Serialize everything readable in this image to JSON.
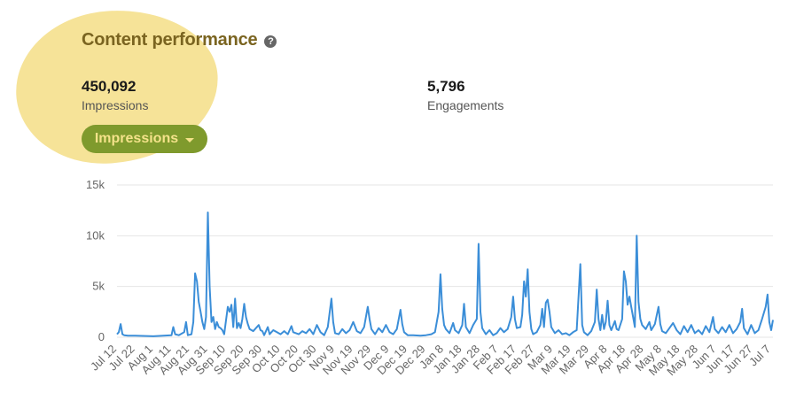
{
  "header": {
    "title": "Content performance",
    "help_icon": "help-icon",
    "help_glyph": "?"
  },
  "metrics": {
    "impressions": {
      "value": "450,092",
      "label": "Impressions"
    },
    "engagements": {
      "value": "5,796",
      "label": "Engagements"
    }
  },
  "dropdown": {
    "label": "Impressions",
    "icon": "caret-down-icon"
  },
  "colors": {
    "line": "#3b8ed8",
    "dropdown_bg": "#7f9a2d",
    "dropdown_text": "#f4e28a",
    "highlight": "#f6e398",
    "title": "#7a6420"
  },
  "chart_data": {
    "type": "line",
    "title": "",
    "xlabel": "",
    "ylabel": "",
    "ylim": [
      0,
      15000
    ],
    "y_ticks": [
      0,
      5000,
      10000,
      15000
    ],
    "y_tick_labels": [
      "0",
      "5k",
      "10k",
      "15k"
    ],
    "grid": true,
    "x_tick_labels": [
      "Jul 12",
      "Jul 22",
      "Aug 1",
      "Aug 11",
      "Aug 21",
      "Aug 31",
      "Sep 10",
      "Sep 20",
      "Sep 30",
      "Oct 10",
      "Oct 20",
      "Oct 30",
      "Nov 9",
      "Nov 19",
      "Nov 29",
      "Dec 9",
      "Dec 19",
      "Dec 29",
      "Jan 8",
      "Jan 18",
      "Jan 28",
      "Feb 7",
      "Feb 17",
      "Feb 27",
      "Mar 9",
      "Mar 19",
      "Mar 29",
      "Apr 8",
      "Apr 18",
      "Apr 28",
      "May 8",
      "May 18",
      "May 28",
      "Jun 7",
      "Jun 17",
      "Jun 27",
      "Jul 7"
    ],
    "series": [
      {
        "name": "",
        "points": [
          [
            "Jul 12",
            300
          ],
          [
            "Jul 13",
            500
          ],
          [
            "Jul 14",
            1300
          ],
          [
            "Jul 15",
            300
          ],
          [
            "Jul 16",
            200
          ],
          [
            "Jul 18",
            150
          ],
          [
            "Jul 22",
            150
          ],
          [
            "Aug 1",
            100
          ],
          [
            "Aug 11",
            200
          ],
          [
            "Aug 12",
            1000
          ],
          [
            "Aug 13",
            300
          ],
          [
            "Aug 15",
            200
          ],
          [
            "Aug 18",
            500
          ],
          [
            "Aug 19",
            1500
          ],
          [
            "Aug 20",
            200
          ],
          [
            "Aug 22",
            300
          ],
          [
            "Aug 23",
            1500
          ],
          [
            "Aug 24",
            6300
          ],
          [
            "Aug 25",
            5500
          ],
          [
            "Aug 26",
            3500
          ],
          [
            "Aug 27",
            2500
          ],
          [
            "Aug 28",
            1500
          ],
          [
            "Aug 29",
            800
          ],
          [
            "Aug 30",
            2000
          ],
          [
            "Aug 31",
            12300
          ],
          [
            "Sep 1",
            5000
          ],
          [
            "Sep 2",
            1500
          ],
          [
            "Sep 3",
            2000
          ],
          [
            "Sep 4",
            800
          ],
          [
            "Sep 5",
            1500
          ],
          [
            "Sep 6",
            1000
          ],
          [
            "Sep 7",
            900
          ],
          [
            "Sep 8",
            700
          ],
          [
            "Sep 9",
            300
          ],
          [
            "Sep 11",
            3000
          ],
          [
            "Sep 12",
            2500
          ],
          [
            "Sep 13",
            3200
          ],
          [
            "Sep 14",
            1000
          ],
          [
            "Sep 15",
            3800
          ],
          [
            "Sep 16",
            900
          ],
          [
            "Sep 17",
            1400
          ],
          [
            "Sep 18",
            900
          ],
          [
            "Sep 19",
            1800
          ],
          [
            "Sep 20",
            3300
          ],
          [
            "Sep 21",
            2000
          ],
          [
            "Sep 22",
            1300
          ],
          [
            "Sep 23",
            800
          ],
          [
            "Sep 25",
            600
          ],
          [
            "Sep 28",
            1200
          ],
          [
            "Sep 29",
            700
          ],
          [
            "Sep 30",
            600
          ],
          [
            "Oct 1",
            200
          ],
          [
            "Oct 3",
            1000
          ],
          [
            "Oct 4",
            300
          ],
          [
            "Oct 6",
            700
          ],
          [
            "Oct 8",
            500
          ],
          [
            "Oct 10",
            300
          ],
          [
            "Oct 12",
            600
          ],
          [
            "Oct 14",
            300
          ],
          [
            "Oct 16",
            1100
          ],
          [
            "Oct 17",
            500
          ],
          [
            "Oct 20",
            300
          ],
          [
            "Oct 22",
            600
          ],
          [
            "Oct 24",
            400
          ],
          [
            "Oct 26",
            800
          ],
          [
            "Oct 28",
            300
          ],
          [
            "Oct 30",
            1200
          ],
          [
            "Nov 1",
            500
          ],
          [
            "Nov 3",
            200
          ],
          [
            "Nov 5",
            1000
          ],
          [
            "Nov 7",
            3800
          ],
          [
            "Nov 8",
            1500
          ],
          [
            "Nov 9",
            400
          ],
          [
            "Nov 11",
            300
          ],
          [
            "Nov 13",
            800
          ],
          [
            "Nov 15",
            400
          ],
          [
            "Nov 17",
            700
          ],
          [
            "Nov 19",
            1500
          ],
          [
            "Nov 21",
            600
          ],
          [
            "Nov 23",
            400
          ],
          [
            "Nov 25",
            1000
          ],
          [
            "Nov 27",
            3000
          ],
          [
            "Nov 28",
            1800
          ],
          [
            "Nov 29",
            800
          ],
          [
            "Dec 1",
            300
          ],
          [
            "Dec 3",
            900
          ],
          [
            "Dec 5",
            500
          ],
          [
            "Dec 7",
            1200
          ],
          [
            "Dec 9",
            500
          ],
          [
            "Dec 11",
            300
          ],
          [
            "Dec 13",
            800
          ],
          [
            "Dec 15",
            2700
          ],
          [
            "Dec 16",
            1300
          ],
          [
            "Dec 17",
            500
          ],
          [
            "Dec 19",
            200
          ],
          [
            "Dec 22",
            200
          ],
          [
            "Dec 26",
            150
          ],
          [
            "Dec 29",
            200
          ],
          [
            "Jan 1",
            300
          ],
          [
            "Jan 3",
            500
          ],
          [
            "Jan 5",
            2500
          ],
          [
            "Jan 6",
            6200
          ],
          [
            "Jan 7",
            2800
          ],
          [
            "Jan 8",
            1200
          ],
          [
            "Jan 9",
            800
          ],
          [
            "Jan 11",
            400
          ],
          [
            "Jan 13",
            1400
          ],
          [
            "Jan 14",
            700
          ],
          [
            "Jan 16",
            400
          ],
          [
            "Jan 18",
            1200
          ],
          [
            "Jan 19",
            3300
          ],
          [
            "Jan 20",
            1000
          ],
          [
            "Jan 22",
            400
          ],
          [
            "Jan 24",
            1200
          ],
          [
            "Jan 26",
            1800
          ],
          [
            "Jan 27",
            9200
          ],
          [
            "Jan 28",
            2500
          ],
          [
            "Jan 29",
            900
          ],
          [
            "Jan 31",
            300
          ],
          [
            "Feb 2",
            700
          ],
          [
            "Feb 4",
            200
          ],
          [
            "Feb 6",
            400
          ],
          [
            "Feb 8",
            900
          ],
          [
            "Feb 10",
            500
          ],
          [
            "Feb 12",
            800
          ],
          [
            "Feb 14",
            2000
          ],
          [
            "Feb 15",
            4000
          ],
          [
            "Feb 16",
            1800
          ],
          [
            "Feb 17",
            900
          ],
          [
            "Feb 19",
            1000
          ],
          [
            "Feb 20",
            2200
          ],
          [
            "Feb 21",
            5500
          ],
          [
            "Feb 22",
            4000
          ],
          [
            "Feb 23",
            6700
          ],
          [
            "Feb 24",
            2500
          ],
          [
            "Feb 25",
            800
          ],
          [
            "Feb 26",
            300
          ],
          [
            "Feb 28",
            500
          ],
          [
            "Mar 2",
            1200
          ],
          [
            "Mar 3",
            2800
          ],
          [
            "Mar 4",
            1000
          ],
          [
            "Mar 5",
            3400
          ],
          [
            "Mar 6",
            3700
          ],
          [
            "Mar 7",
            2500
          ],
          [
            "Mar 8",
            1000
          ],
          [
            "Mar 10",
            400
          ],
          [
            "Mar 12",
            700
          ],
          [
            "Mar 14",
            300
          ],
          [
            "Mar 16",
            400
          ],
          [
            "Mar 18",
            200
          ],
          [
            "Mar 20",
            500
          ],
          [
            "Mar 22",
            700
          ],
          [
            "Mar 24",
            7200
          ],
          [
            "Mar 25",
            1200
          ],
          [
            "Mar 26",
            500
          ],
          [
            "Mar 28",
            200
          ],
          [
            "Mar 30",
            600
          ],
          [
            "Apr 1",
            1500
          ],
          [
            "Apr 2",
            4700
          ],
          [
            "Apr 3",
            1800
          ],
          [
            "Apr 4",
            700
          ],
          [
            "Apr 5",
            2200
          ],
          [
            "Apr 6",
            800
          ],
          [
            "Apr 7",
            1500
          ],
          [
            "Apr 8",
            3600
          ],
          [
            "Apr 9",
            1200
          ],
          [
            "Apr 10",
            700
          ],
          [
            "Apr 12",
            1600
          ],
          [
            "Apr 13",
            800
          ],
          [
            "Apr 14",
            700
          ],
          [
            "Apr 16",
            1800
          ],
          [
            "Apr 17",
            6500
          ],
          [
            "Apr 18",
            5500
          ],
          [
            "Apr 19",
            3200
          ],
          [
            "Apr 20",
            4000
          ],
          [
            "Apr 21",
            3000
          ],
          [
            "Apr 22",
            2000
          ],
          [
            "Apr 23",
            1000
          ],
          [
            "Apr 24",
            10000
          ],
          [
            "Apr 25",
            3500
          ],
          [
            "Apr 26",
            1800
          ],
          [
            "Apr 27",
            1200
          ],
          [
            "Apr 29",
            800
          ],
          [
            "May 1",
            1500
          ],
          [
            "May 2",
            700
          ],
          [
            "May 4",
            1300
          ],
          [
            "May 6",
            3000
          ],
          [
            "May 7",
            1300
          ],
          [
            "May 8",
            600
          ],
          [
            "May 10",
            400
          ],
          [
            "May 12",
            900
          ],
          [
            "May 14",
            1400
          ],
          [
            "May 16",
            700
          ],
          [
            "May 18",
            300
          ],
          [
            "May 20",
            1100
          ],
          [
            "May 22",
            500
          ],
          [
            "May 24",
            1200
          ],
          [
            "May 26",
            400
          ],
          [
            "May 28",
            700
          ],
          [
            "May 30",
            300
          ],
          [
            "Jun 1",
            1100
          ],
          [
            "Jun 3",
            500
          ],
          [
            "Jun 5",
            2000
          ],
          [
            "Jun 6",
            800
          ],
          [
            "Jun 8",
            400
          ],
          [
            "Jun 10",
            1000
          ],
          [
            "Jun 12",
            500
          ],
          [
            "Jun 14",
            1200
          ],
          [
            "Jun 16",
            400
          ],
          [
            "Jun 18",
            800
          ],
          [
            "Jun 20",
            1500
          ],
          [
            "Jun 21",
            2800
          ],
          [
            "Jun 22",
            900
          ],
          [
            "Jun 24",
            300
          ],
          [
            "Jun 26",
            1200
          ],
          [
            "Jun 28",
            400
          ],
          [
            "Jun 30",
            700
          ],
          [
            "Jul 2",
            1800
          ],
          [
            "Jul 4",
            3000
          ],
          [
            "Jul 5",
            4200
          ],
          [
            "Jul 6",
            1500
          ],
          [
            "Jul 7",
            700
          ],
          [
            "Jul 8",
            1700
          ]
        ]
      }
    ]
  }
}
